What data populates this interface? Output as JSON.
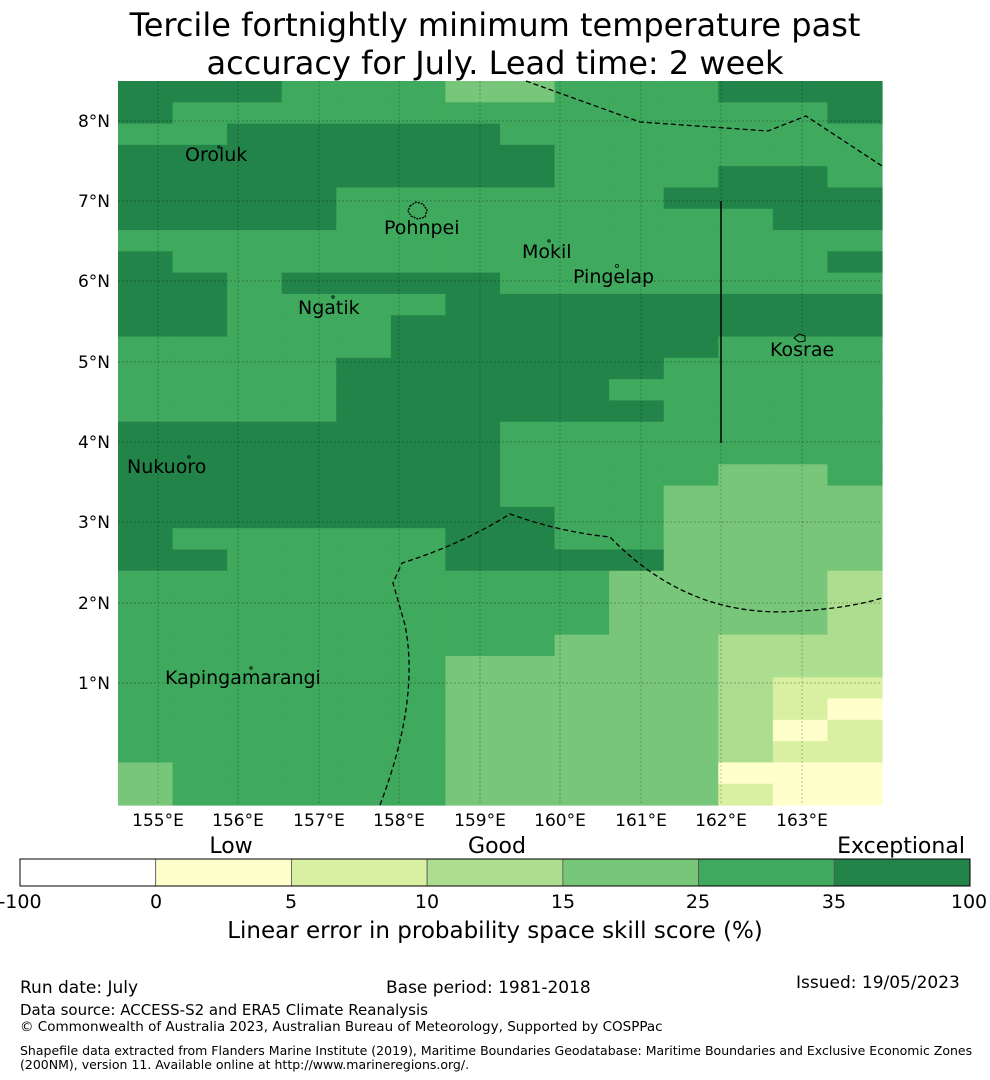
{
  "title_line1": "Tercile fortnightly minimum temperature past",
  "title_line2": "accuracy for July. Lead time: 2 week",
  "map": {
    "lon_ticks": [
      "155°E",
      "156°E",
      "157°E",
      "158°E",
      "159°E",
      "160°E",
      "161°E",
      "162°E",
      "163°E"
    ],
    "lat_ticks": [
      "8°N",
      "7°N",
      "6°N",
      "5°N",
      "4°N",
      "3°N",
      "2°N",
      "1°N"
    ],
    "place_labels": [
      {
        "name": "Oroluk"
      },
      {
        "name": "Pohnpei"
      },
      {
        "name": "Mokil"
      },
      {
        "name": "Pingelap"
      },
      {
        "name": "Ngatik"
      },
      {
        "name": "Kosrae"
      },
      {
        "name": "Nukuoro"
      },
      {
        "name": "Kapingamarangi"
      }
    ],
    "grid_colors": {
      "A": "#23844a",
      "B": "#3fa95d",
      "C": "#78c679",
      "D": "#addd8e",
      "E": "#d9f0a3",
      "F": "#ffffcc"
    },
    "grid_rows": [
      "AAABBBCCBBBAAA",
      "ABBBBBBBBBBBBA",
      "BBAAAAABBBBBBB",
      "AAAAAAAABBBBBB",
      "AAAAAAAABBBAAB",
      "AAAABBBBBBAAAA",
      "AAAABBBBBBBBAA",
      "BBBBBBBBBBBBBB",
      "ABBBBBBBBBBBBA",
      "AABAAAABBBBBBB",
      "AABBBBAAAAAAAA",
      "AABBBAAAAAAAAA",
      "BBBBBAAAAAABBB",
      "BBBBAAAAAABBBB",
      "BBBBAAAAABBBBB",
      "BBBBAAAAAABBBB",
      "AAAAAAABBBBBBB",
      "AAAAAAABBBBBBB",
      "AAAAAAABBBBCCB",
      "AAAAAAABBBCCCC",
      "AAAAAAAABBCCCC",
      "ABBBBBAABBCCCC",
      "AABBBBAAAACCCC",
      "BBBBBBBBBCCCCD",
      "BBBBBBBBBCCCCD",
      "BBBBBBBBBCCCCD",
      "BBBBBBBBCCCDDD",
      "BBBBBBCCCCCDDD",
      "BBBBBBCCCCCDEE",
      "BBBBBBCCCCCDEF",
      "BBBBBBCCCCCDFE",
      "BBBBBBCCCCCDEE",
      "CBBBBBCCCCCFFF",
      "CBBBBBCCCCCEFF"
    ]
  },
  "colorbar": {
    "category_labels": {
      "low": "Low",
      "good": "Good",
      "exceptional": "Exceptional"
    },
    "ticks": [
      "-100",
      "0",
      "5",
      "10",
      "15",
      "25",
      "35",
      "100"
    ],
    "colors": [
      "#ffffff",
      "#ffffcc",
      "#d9f0a3",
      "#addd8e",
      "#78c679",
      "#3fa95d",
      "#23844a"
    ],
    "title": "Linear error in probability space skill score (%)"
  },
  "footer": {
    "run_date": "Run date: July",
    "base_period": "Base period: 1981-2018",
    "issued": "Issued: 19/05/2023",
    "data_source": "Data source: ACCESS-S2 and ERA5 Climate Reanalysis",
    "copyright": "© Commonwealth of Australia 2023, Australian Bureau of Meteorology, Supported by COSPPac",
    "shapefile_line1": "Shapefile data extracted from Flanders Marine Institute (2019), Maritime Boundaries Geodatabase: Maritime Boundaries and Exclusive Economic Zones",
    "shapefile_line2": "(200NM), version 11. Available online at http://www.marineregions.org/."
  }
}
